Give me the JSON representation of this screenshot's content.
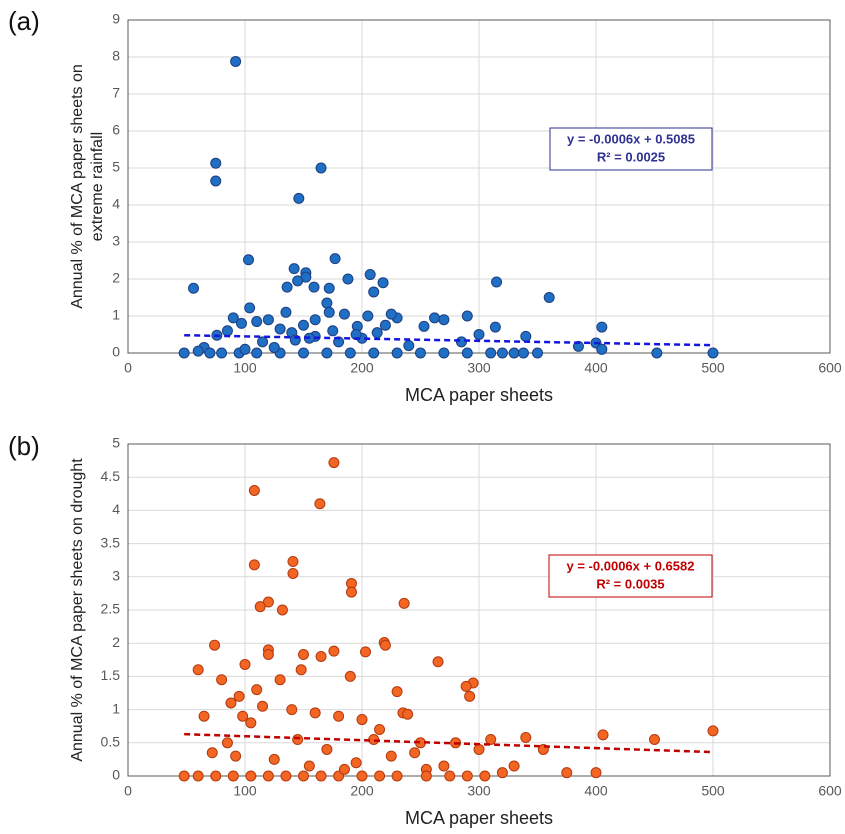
{
  "chart_data": [
    {
      "type": "scatter",
      "panel": "(a)",
      "xlabel": "MCA paper sheets",
      "ylabel": [
        "Annual % of MCA paper sheets on",
        "extreme rainfall"
      ],
      "color": "#1f6fc5",
      "edgecolor": "#1f3f7f",
      "x": [
        92,
        75,
        75,
        165,
        146,
        56,
        103,
        142,
        152,
        152,
        145,
        177,
        188,
        207,
        210,
        218,
        159,
        136,
        172,
        315,
        360,
        405,
        400,
        340,
        290,
        300,
        314,
        262,
        253,
        270,
        230,
        225,
        213,
        196,
        185,
        170,
        172,
        160,
        150,
        140,
        130,
        120,
        110,
        104,
        97,
        90,
        85,
        76,
        65,
        60,
        48,
        70,
        80,
        95,
        110,
        130,
        150,
        170,
        190,
        210,
        230,
        250,
        270,
        290,
        310,
        330,
        350,
        385,
        452,
        500,
        405,
        180,
        200,
        240,
        285,
        320,
        338,
        143,
        115,
        100,
        160,
        220,
        205,
        195,
        125,
        135,
        155,
        175
      ],
      "values": [
        7.88,
        5.13,
        4.65,
        5.0,
        4.18,
        1.75,
        2.52,
        2.28,
        2.17,
        2.05,
        1.95,
        2.55,
        2.0,
        2.12,
        1.65,
        1.9,
        1.78,
        1.78,
        1.75,
        1.92,
        1.5,
        0.7,
        0.27,
        0.45,
        1.0,
        0.5,
        0.7,
        0.95,
        0.72,
        0.9,
        0.95,
        1.05,
        0.55,
        0.72,
        1.05,
        1.35,
        1.1,
        0.9,
        0.75,
        0.55,
        0.65,
        0.9,
        0.85,
        1.22,
        0.8,
        0.95,
        0.6,
        0.48,
        0.15,
        0.05,
        0,
        0,
        0,
        0,
        0,
        0,
        0,
        0,
        0,
        0,
        0,
        0,
        0,
        0,
        0,
        0,
        0,
        0.18,
        0,
        0,
        0.1,
        0.3,
        0.4,
        0.2,
        0.3,
        0,
        0,
        0.35,
        0.3,
        0.1,
        0.45,
        0.75,
        1.0,
        0.5,
        0.15,
        1.1,
        0.4,
        0.6
      ],
      "xlim": [
        0,
        600
      ],
      "xticks": [
        0,
        100,
        200,
        300,
        400,
        500,
        600
      ],
      "ylim": [
        0,
        9
      ],
      "yticks": [
        0,
        1,
        2,
        3,
        4,
        5,
        6,
        7,
        8,
        9
      ],
      "grid": true,
      "trendline": {
        "x": [
          48,
          500
        ],
        "values": [
          0.48,
          0.21
        ],
        "color": "#1515e0"
      },
      "annotation": {
        "lines": [
          "y = -0.0006x + 0.5085",
          "R² = 0.0025"
        ],
        "color": "#2e3192"
      }
    },
    {
      "type": "scatter",
      "panel": "(b)",
      "xlabel": "MCA paper sheets",
      "ylabel": [
        "Annual % of MCA paper sheets on drought"
      ],
      "color": "#f26522",
      "edgecolor": "#b23a10",
      "x": [
        108,
        176,
        164,
        141,
        141,
        108,
        191,
        191,
        120,
        113,
        132,
        236,
        219,
        220,
        74,
        60,
        100,
        120,
        120,
        150,
        165,
        176,
        203,
        265,
        295,
        289,
        292,
        230,
        190,
        148,
        130,
        110,
        95,
        80,
        88,
        98,
        105,
        115,
        140,
        160,
        180,
        200,
        235,
        239,
        215,
        250,
        300,
        310,
        340,
        355,
        406,
        450,
        500,
        400,
        375,
        330,
        280,
        270,
        255,
        65,
        72,
        85,
        92,
        125,
        145,
        170,
        195,
        225,
        245,
        48,
        60,
        75,
        90,
        105,
        120,
        135,
        150,
        165,
        180,
        200,
        215,
        230,
        255,
        275,
        290,
        305,
        320,
        185,
        155,
        210
      ],
      "values": [
        4.3,
        4.72,
        4.1,
        3.23,
        3.05,
        3.18,
        2.9,
        2.77,
        2.62,
        2.55,
        2.5,
        2.6,
        2.01,
        1.97,
        1.97,
        1.6,
        1.68,
        1.9,
        1.83,
        1.83,
        1.8,
        1.88,
        1.87,
        1.72,
        1.4,
        1.35,
        1.2,
        1.27,
        1.5,
        1.6,
        1.45,
        1.3,
        1.2,
        1.45,
        1.1,
        0.9,
        0.8,
        1.05,
        1.0,
        0.95,
        0.9,
        0.85,
        0.95,
        0.93,
        0.7,
        0.5,
        0.4,
        0.55,
        0.58,
        0.4,
        0.62,
        0.55,
        0.68,
        0.05,
        0.05,
        0.15,
        0.5,
        0.15,
        0.1,
        0.9,
        0.35,
        0.5,
        0.3,
        0.25,
        0.55,
        0.4,
        0.2,
        0.3,
        0.35,
        0,
        0,
        0,
        0,
        0,
        0,
        0,
        0,
        0,
        0,
        0,
        0,
        0,
        0,
        0,
        0,
        0,
        0.05,
        0.1,
        0.15,
        0.55
      ],
      "xlim": [
        0,
        600
      ],
      "xticks": [
        0,
        100,
        200,
        300,
        400,
        500,
        600
      ],
      "ylim": [
        0,
        5
      ],
      "yticks": [
        0,
        {
          "value": 0.5,
          "label": "0.5"
        },
        1,
        {
          "value": 1.5,
          "label": "1.5"
        },
        2,
        {
          "value": 2.5,
          "label": "2.5"
        },
        3,
        {
          "value": 3.5,
          "label": "3.5"
        },
        4,
        {
          "value": 4.5,
          "label": "4.5"
        },
        5
      ],
      "grid": true,
      "trendline": {
        "x": [
          48,
          500
        ],
        "values": [
          0.63,
          0.36
        ],
        "color": "#c00000"
      },
      "annotation": {
        "lines": [
          "y = -0.0006x + 0.6582",
          "R² = 0.0035"
        ],
        "color": "#c00000"
      }
    }
  ]
}
